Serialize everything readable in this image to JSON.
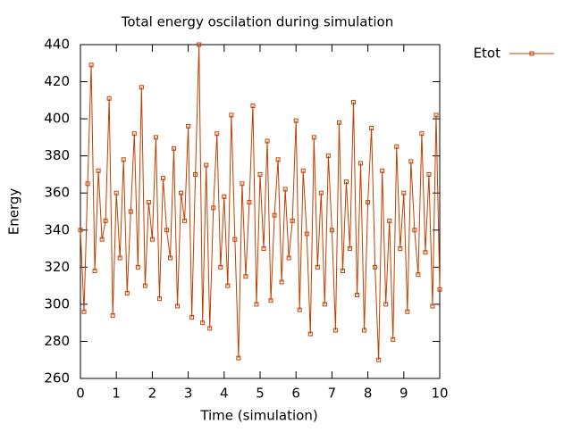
{
  "chart_data": {
    "type": "line",
    "title": "Total energy oscilation during simulation",
    "x_label": "Time (simulation)",
    "y_label": "Energy",
    "xlim": [
      0,
      10
    ],
    "xticks": [
      0,
      1,
      2,
      3,
      4,
      5,
      6,
      7,
      8,
      9,
      10
    ],
    "ylim": [
      260,
      440
    ],
    "yticks": [
      260,
      280,
      300,
      320,
      340,
      360,
      380,
      400,
      420,
      440
    ],
    "grid": false,
    "legend": "right",
    "marker": "square",
    "x": [
      0,
      0.1,
      0.2,
      0.3,
      0.4,
      0.5,
      0.6,
      0.7,
      0.8,
      0.9,
      1,
      1.1,
      1.2,
      1.3,
      1.4,
      1.5,
      1.6,
      1.7,
      1.8,
      1.9,
      2,
      2.1,
      2.2,
      2.3,
      2.4,
      2.5,
      2.6,
      2.7,
      2.8,
      2.9,
      3,
      3.1,
      3.2,
      3.3,
      3.4,
      3.5,
      3.6,
      3.7,
      3.8,
      3.9,
      4,
      4.1,
      4.2,
      4.3,
      4.4,
      4.5,
      4.6,
      4.7,
      4.8,
      4.9,
      5,
      5.1,
      5.2,
      5.3,
      5.4,
      5.5,
      5.6,
      5.7,
      5.8,
      5.9,
      6,
      6.1,
      6.2,
      6.3,
      6.4,
      6.5,
      6.6,
      6.7,
      6.8,
      6.9,
      7,
      7.1,
      7.2,
      7.3,
      7.4,
      7.5,
      7.6,
      7.7,
      7.8,
      7.9,
      8,
      8.1,
      8.2,
      8.3,
      8.4,
      8.5,
      8.6,
      8.7,
      8.8,
      8.9,
      9,
      9.1,
      9.2,
      9.3,
      9.4,
      9.5,
      9.6,
      9.7,
      9.8,
      9.9,
      10
    ],
    "series": [
      {
        "name": "Etot",
        "color": "#c04000",
        "values": [
          340,
          296,
          365,
          429,
          318,
          372,
          335,
          345,
          411,
          294,
          360,
          325,
          378,
          306,
          350,
          392,
          320,
          417,
          310,
          355,
          335,
          390,
          303,
          368,
          340,
          325,
          384,
          299,
          360,
          345,
          396,
          293,
          370,
          440,
          290,
          375,
          287,
          352,
          392,
          320,
          358,
          310,
          402,
          335,
          271,
          365,
          315,
          355,
          407,
          300,
          370,
          330,
          388,
          302,
          348,
          378,
          312,
          362,
          325,
          345,
          399,
          297,
          372,
          338,
          284,
          390,
          320,
          360,
          300,
          380,
          340,
          286,
          398,
          318,
          366,
          330,
          409,
          305,
          376,
          286,
          355,
          395,
          320,
          270,
          372,
          300,
          345,
          281,
          385,
          330,
          360,
          296,
          377,
          340,
          316,
          392,
          328,
          370,
          299,
          402,
          308
        ]
      }
    ]
  }
}
